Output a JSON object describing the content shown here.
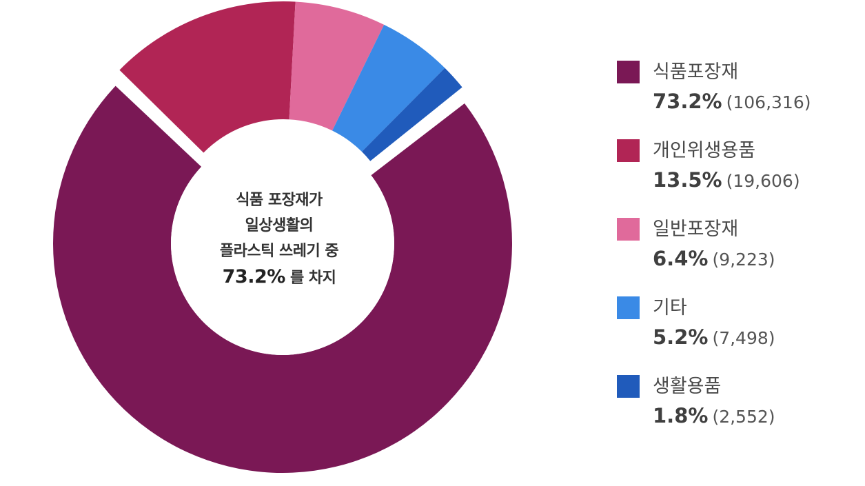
{
  "center": {
    "line1": "식품 포장재가",
    "line2": "일상생활의",
    "line3": "플라스틱 쓰레기 중",
    "highlight": "73.2%",
    "suffix": "를 차지"
  },
  "colors": {
    "식품포장재": "#7a1855",
    "개인위생용품": "#b12555",
    "일반포장재": "#e06a9b",
    "기타": "#3a8ae6",
    "생활용품": "#205bbb"
  },
  "chart_data": {
    "type": "pie",
    "style": "donut",
    "legend_position": "right",
    "series": [
      {
        "name": "식품포장재",
        "percent": 73.2,
        "percent_label": "73.2%",
        "count": 106316,
        "count_label": "(106,316)",
        "color": "#7a1855"
      },
      {
        "name": "개인위생용품",
        "percent": 13.5,
        "percent_label": "13.5%",
        "count": 19606,
        "count_label": "(19,606)",
        "color": "#b12555"
      },
      {
        "name": "일반포장재",
        "percent": 6.4,
        "percent_label": "6.4%",
        "count": 9223,
        "count_label": "(9,223)",
        "color": "#e06a9b"
      },
      {
        "name": "기타",
        "percent": 5.2,
        "percent_label": "5.2%",
        "count": 7498,
        "count_label": "(7,498)",
        "color": "#3a8ae6"
      },
      {
        "name": "생활용품",
        "percent": 1.8,
        "percent_label": "1.8%",
        "count": 2552,
        "count_label": "(2,552)",
        "color": "#205bbb"
      }
    ]
  }
}
